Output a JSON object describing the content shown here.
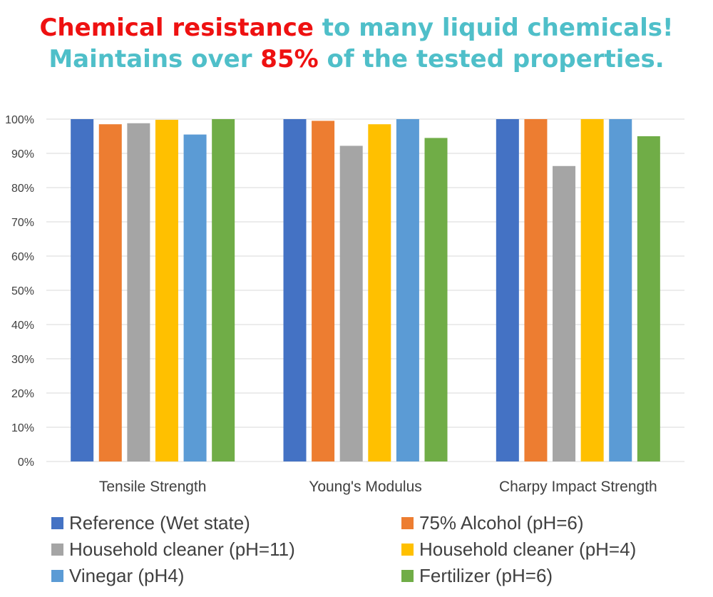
{
  "headline": {
    "line1_red": "Chemical resistance",
    "line1_teal": " to many liquid chemicals!",
    "line2_teal_a": "Maintains over ",
    "line2_red": "85%",
    "line2_teal_b": " of the tested properties."
  },
  "chart_data": {
    "type": "bar",
    "title": "",
    "xlabel": "",
    "ylabel": "",
    "ylim": [
      0,
      100
    ],
    "yticks": [
      "0%",
      "10%",
      "20%",
      "30%",
      "40%",
      "50%",
      "60%",
      "70%",
      "80%",
      "90%",
      "100%"
    ],
    "grid": true,
    "legend_position": "bottom",
    "categories": [
      "Tensile Strength",
      "Young's Modulus",
      "Charpy Impact Strength"
    ],
    "series": [
      {
        "name": "Reference (Wet state)",
        "color": "#4472c4",
        "values": [
          100,
          100,
          100
        ]
      },
      {
        "name": "75% Alcohol (pH=6)",
        "color": "#ed7d31",
        "values": [
          98.5,
          99.5,
          100
        ]
      },
      {
        "name": "Household cleaner (pH=11)",
        "color": "#a5a5a5",
        "values": [
          98.8,
          92.2,
          86.3
        ]
      },
      {
        "name": "Household cleaner (pH=4)",
        "color": "#ffc000",
        "values": [
          99.8,
          98.5,
          100
        ]
      },
      {
        "name": "Vinegar (pH4)",
        "color": "#5b9bd5",
        "values": [
          95.5,
          100,
          100
        ]
      },
      {
        "name": "Fertilizer (pH=6)",
        "color": "#70ad47",
        "values": [
          100,
          94.5,
          95
        ]
      }
    ]
  }
}
